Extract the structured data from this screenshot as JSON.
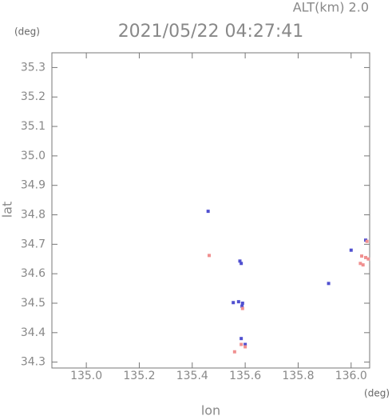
{
  "chart_data": {
    "type": "scatter",
    "title": "2021/05/22 04:27:41",
    "subtitle": "ALT(km) 2.0",
    "y_unit": "(deg)",
    "x_unit": "(deg)",
    "xlabel": "lon",
    "ylabel": "lat",
    "xlim": [
      134.87,
      136.07
    ],
    "ylim": [
      34.28,
      35.35
    ],
    "xticks": [
      {
        "value": 135,
        "label": "135.0"
      },
      135.2,
      135.4,
      135.6,
      135.8,
      {
        "value": 136,
        "label": "136.0"
      }
    ],
    "yticks": [
      34.3,
      34.4,
      34.5,
      34.6,
      34.7,
      34.8,
      34.9,
      {
        "value": 35,
        "label": "35.0"
      },
      35.1,
      35.2,
      35.3
    ],
    "series": [
      {
        "color": "#5050d0",
        "x": [
          135.46,
          135.58,
          135.585,
          135.555,
          135.575,
          135.588,
          135.59,
          135.585,
          135.6,
          136.055,
          135.915,
          136.0
        ],
        "y": [
          34.812,
          34.643,
          34.635,
          34.502,
          34.505,
          34.49,
          34.5,
          34.38,
          34.36,
          34.714,
          34.567,
          34.68
        ]
      },
      {
        "color": "#f09090",
        "x": [
          135.464,
          135.59,
          135.6,
          135.56,
          135.585,
          136.04,
          136.055,
          136.065,
          136.035,
          136.06,
          136.045
        ],
        "y": [
          34.662,
          34.482,
          34.352,
          34.335,
          34.36,
          34.66,
          34.655,
          34.65,
          34.635,
          34.71,
          34.63
        ]
      }
    ]
  }
}
